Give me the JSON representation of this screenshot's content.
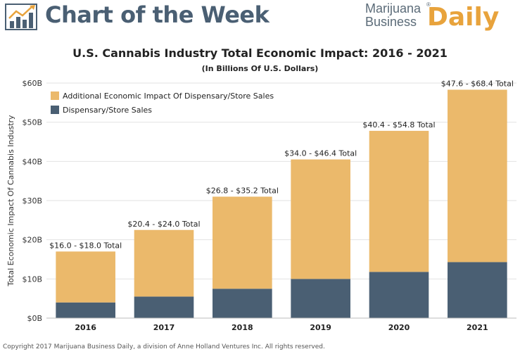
{
  "header": {
    "title": "Chart of the Week",
    "brand_line1": "Marijuana",
    "brand_line2": "Business",
    "brand_daily": "Daily",
    "brand_reg": "®",
    "icon": "bar-chart-trend-icon"
  },
  "colors": {
    "dispensary": "#4a5f73",
    "additional": "#ebb96b",
    "brand_orange": "#e8a33c"
  },
  "chart_data": {
    "type": "bar",
    "stacked": true,
    "title": "U.S. Cannabis Industry Total Economic Impact: 2016 - 2021",
    "subtitle": "(In Billions Of U.S. Dollars)",
    "xlabel": "",
    "ylabel": "Total Economic Impact Of Cannabis Industry",
    "ylim": [
      0,
      60
    ],
    "yticks": [
      0,
      10,
      20,
      30,
      40,
      50,
      60
    ],
    "ytick_labels": [
      "$0B",
      "$10B",
      "$20B",
      "$30B",
      "$40B",
      "$50B",
      "$60B"
    ],
    "grid": true,
    "legend_position": "top-left",
    "categories": [
      "2016",
      "2017",
      "2018",
      "2019",
      "2020",
      "2021"
    ],
    "series": [
      {
        "name": "Dispensary/Store Sales",
        "values": [
          4,
          5.5,
          7.5,
          10,
          11.8,
          14.3
        ]
      },
      {
        "name": "Additional Economic Impact Of Dispensary/Store Sales",
        "values": [
          13,
          17,
          23.5,
          30.5,
          36,
          44
        ]
      }
    ],
    "bar_labels": [
      "$16.0 - $18.0 Total",
      "$20.4 - $24.0 Total",
      "$26.8 - $35.2 Total",
      "$34.0 - $46.4 Total",
      "$40.4 - $54.8 Total",
      "$47.6 - $68.4 Total"
    ]
  },
  "footer": {
    "copyright": "Copyright 2017 Marijuana Business Daily, a division of Anne Holland Ventures Inc. All rights reserved."
  }
}
